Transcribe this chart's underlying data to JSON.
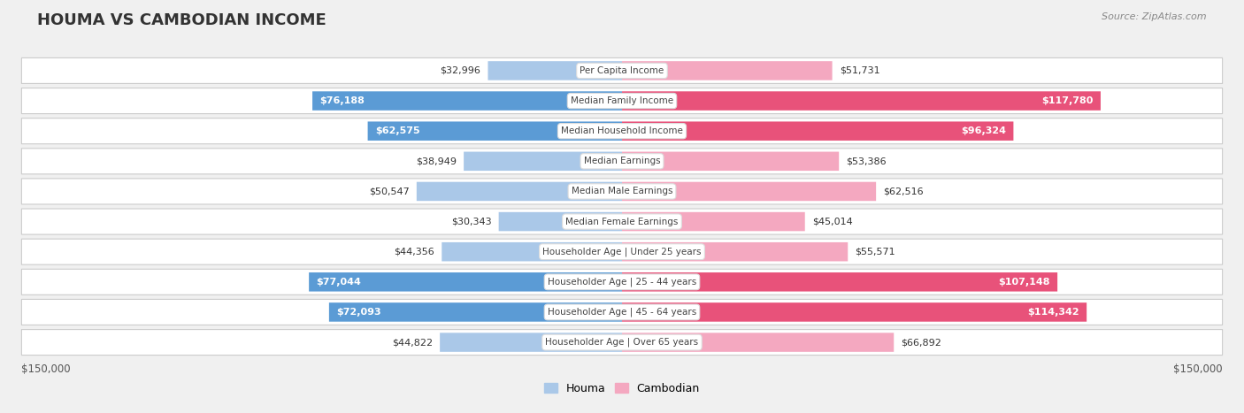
{
  "title": "HOUMA VS CAMBODIAN INCOME",
  "source": "Source: ZipAtlas.com",
  "categories": [
    "Per Capita Income",
    "Median Family Income",
    "Median Household Income",
    "Median Earnings",
    "Median Male Earnings",
    "Median Female Earnings",
    "Householder Age | Under 25 years",
    "Householder Age | 25 - 44 years",
    "Householder Age | 45 - 64 years",
    "Householder Age | Over 65 years"
  ],
  "houma_values": [
    32996,
    76188,
    62575,
    38949,
    50547,
    30343,
    44356,
    77044,
    72093,
    44822
  ],
  "cambodian_values": [
    51731,
    117780,
    96324,
    53386,
    62516,
    45014,
    55571,
    107148,
    114342,
    66892
  ],
  "houma_labels": [
    "$32,996",
    "$76,188",
    "$62,575",
    "$38,949",
    "$50,547",
    "$30,343",
    "$44,356",
    "$77,044",
    "$72,093",
    "$44,822"
  ],
  "cambodian_labels": [
    "$51,731",
    "$117,780",
    "$96,324",
    "$53,386",
    "$62,516",
    "$45,014",
    "$55,571",
    "$107,148",
    "$114,342",
    "$66,892"
  ],
  "houma_color_light": "#aac8e8",
  "houma_color_dark": "#5b9bd5",
  "cambodian_color_light": "#f4a8c0",
  "cambodian_color_dark": "#e8527a",
  "max_value": 150000,
  "x_label_left": "$150,000",
  "x_label_right": "$150,000",
  "background_color": "#f0f0f0",
  "row_bg_color": "#ffffff",
  "row_border_color": "#cccccc",
  "legend_houma": "Houma",
  "legend_cambodian": "Cambodian",
  "houma_large_threshold": 60000,
  "cambodian_large_threshold": 90000,
  "title_fontsize": 13,
  "label_fontsize": 8,
  "category_fontsize": 7.5,
  "source_fontsize": 8
}
